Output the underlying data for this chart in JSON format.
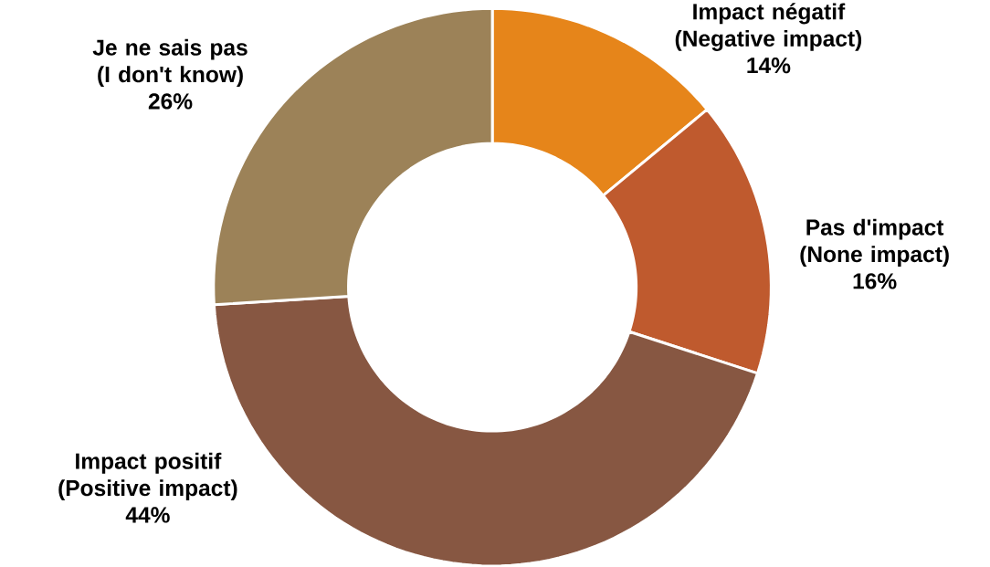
{
  "chart_data": {
    "type": "donut",
    "categories": [
      "Impact négatif (Negative impact)",
      "Pas d'impact (None impact)",
      "Impact positif (Positive impact)",
      "Je ne sais pas (I don't know)"
    ],
    "values": [
      14,
      16,
      44,
      26
    ],
    "value_labels": [
      "14%",
      "16%",
      "44%",
      "26%"
    ],
    "colors": [
      "#e6851a",
      "#bf5a2e",
      "#875742",
      "#9c8258"
    ]
  }
}
